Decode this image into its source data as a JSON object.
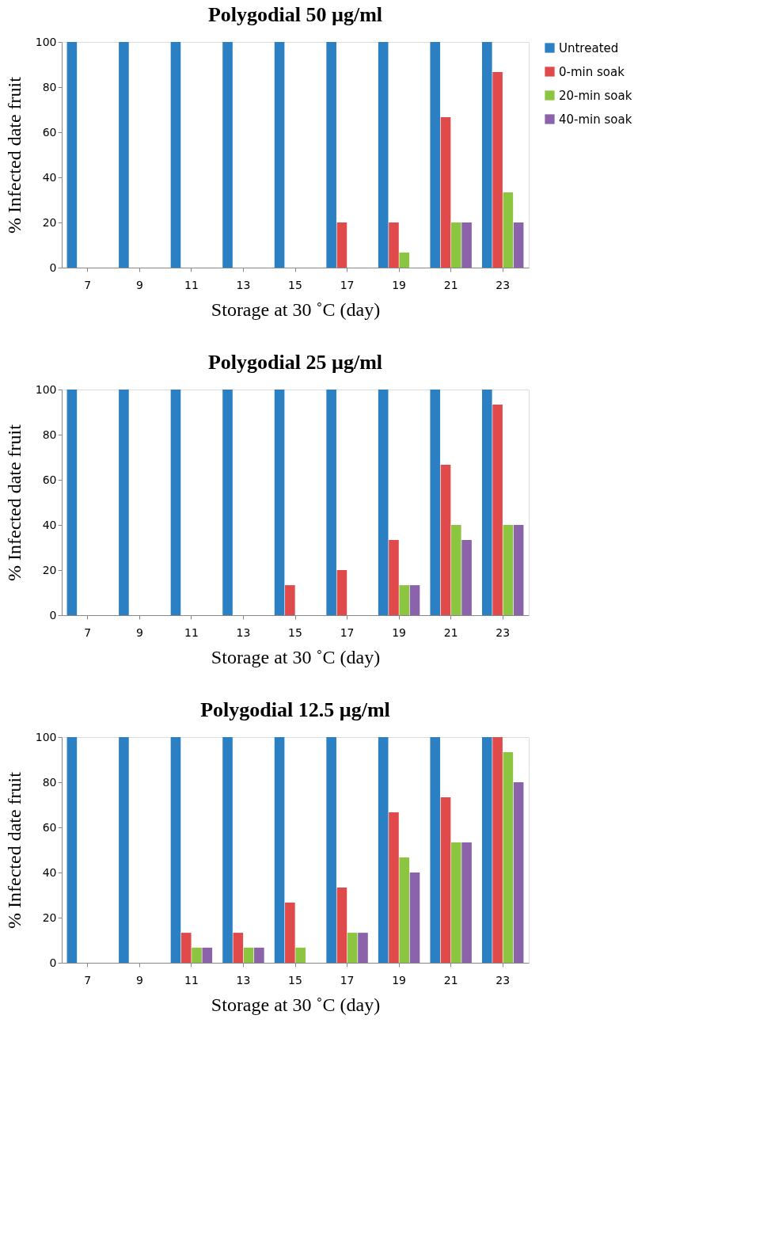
{
  "chart_data": [
    {
      "type": "bar",
      "title": "Polygodial 50 µg/ml",
      "xlabel": "Storage at 30 ˚C (day)",
      "ylabel": "% Infected date fruit",
      "categories": [
        "7",
        "9",
        "11",
        "13",
        "15",
        "17",
        "19",
        "21",
        "23"
      ],
      "ylim": [
        0,
        100
      ],
      "yticks": [
        0,
        20,
        40,
        60,
        80,
        100
      ],
      "grid": false,
      "legend": "right",
      "series": [
        {
          "name": "Untreated",
          "color": "#2b7fc3",
          "values": [
            100,
            100,
            100,
            100,
            100,
            100,
            100,
            100,
            100
          ]
        },
        {
          "name": "0-min soak",
          "color": "#e04a4a",
          "values": [
            0,
            0,
            0,
            0,
            0,
            20,
            20,
            66.7,
            86.7
          ]
        },
        {
          "name": "20-min soak",
          "color": "#8cc540",
          "values": [
            0,
            0,
            0,
            0,
            0,
            0,
            6.7,
            20,
            33.3
          ]
        },
        {
          "name": "40-min soak",
          "color": "#8b63aa",
          "values": [
            0,
            0,
            0,
            0,
            0,
            0,
            0,
            20,
            20
          ]
        }
      ]
    },
    {
      "type": "bar",
      "title": "Polygodial 25 µg/ml",
      "xlabel": "Storage at 30 ˚C (day)",
      "ylabel": "% Infected date fruit",
      "categories": [
        "7",
        "9",
        "11",
        "13",
        "15",
        "17",
        "19",
        "21",
        "23"
      ],
      "ylim": [
        0,
        100
      ],
      "yticks": [
        0,
        20,
        40,
        60,
        80,
        100
      ],
      "grid": false,
      "legend": "right",
      "series": [
        {
          "name": "Untreated",
          "color": "#2b7fc3",
          "values": [
            100,
            100,
            100,
            100,
            100,
            100,
            100,
            100,
            100
          ]
        },
        {
          "name": "0-min soak",
          "color": "#e04a4a",
          "values": [
            0,
            0,
            0,
            0,
            13.3,
            20,
            33.3,
            66.7,
            93.3
          ]
        },
        {
          "name": "20-min soak",
          "color": "#8cc540",
          "values": [
            0,
            0,
            0,
            0,
            0,
            0,
            13.3,
            40,
            40
          ]
        },
        {
          "name": "40-min soak",
          "color": "#8b63aa",
          "values": [
            0,
            0,
            0,
            0,
            0,
            0,
            13.3,
            33.3,
            40
          ]
        }
      ]
    },
    {
      "type": "bar",
      "title": "Polygodial 12.5 µg/ml",
      "xlabel": "Storage at 30 ˚C (day)",
      "ylabel": "% Infected date fruit",
      "categories": [
        "7",
        "9",
        "11",
        "13",
        "15",
        "17",
        "19",
        "21",
        "23"
      ],
      "ylim": [
        0,
        100
      ],
      "yticks": [
        0,
        20,
        40,
        60,
        80,
        100
      ],
      "grid": false,
      "legend": "right",
      "series": [
        {
          "name": "Untreated",
          "color": "#2b7fc3",
          "values": [
            100,
            100,
            100,
            100,
            100,
            100,
            100,
            100,
            100
          ]
        },
        {
          "name": "0-min soak",
          "color": "#e04a4a",
          "values": [
            0,
            0,
            13.3,
            13.3,
            26.7,
            33.3,
            66.7,
            73.3,
            100
          ]
        },
        {
          "name": "20-min soak",
          "color": "#8cc540",
          "values": [
            0,
            0,
            6.7,
            6.7,
            6.7,
            13.3,
            46.7,
            53.3,
            93.3
          ]
        },
        {
          "name": "40-min soak",
          "color": "#8b63aa",
          "values": [
            0,
            0,
            6.7,
            6.7,
            0,
            13.3,
            40,
            53.3,
            80
          ]
        }
      ]
    }
  ]
}
